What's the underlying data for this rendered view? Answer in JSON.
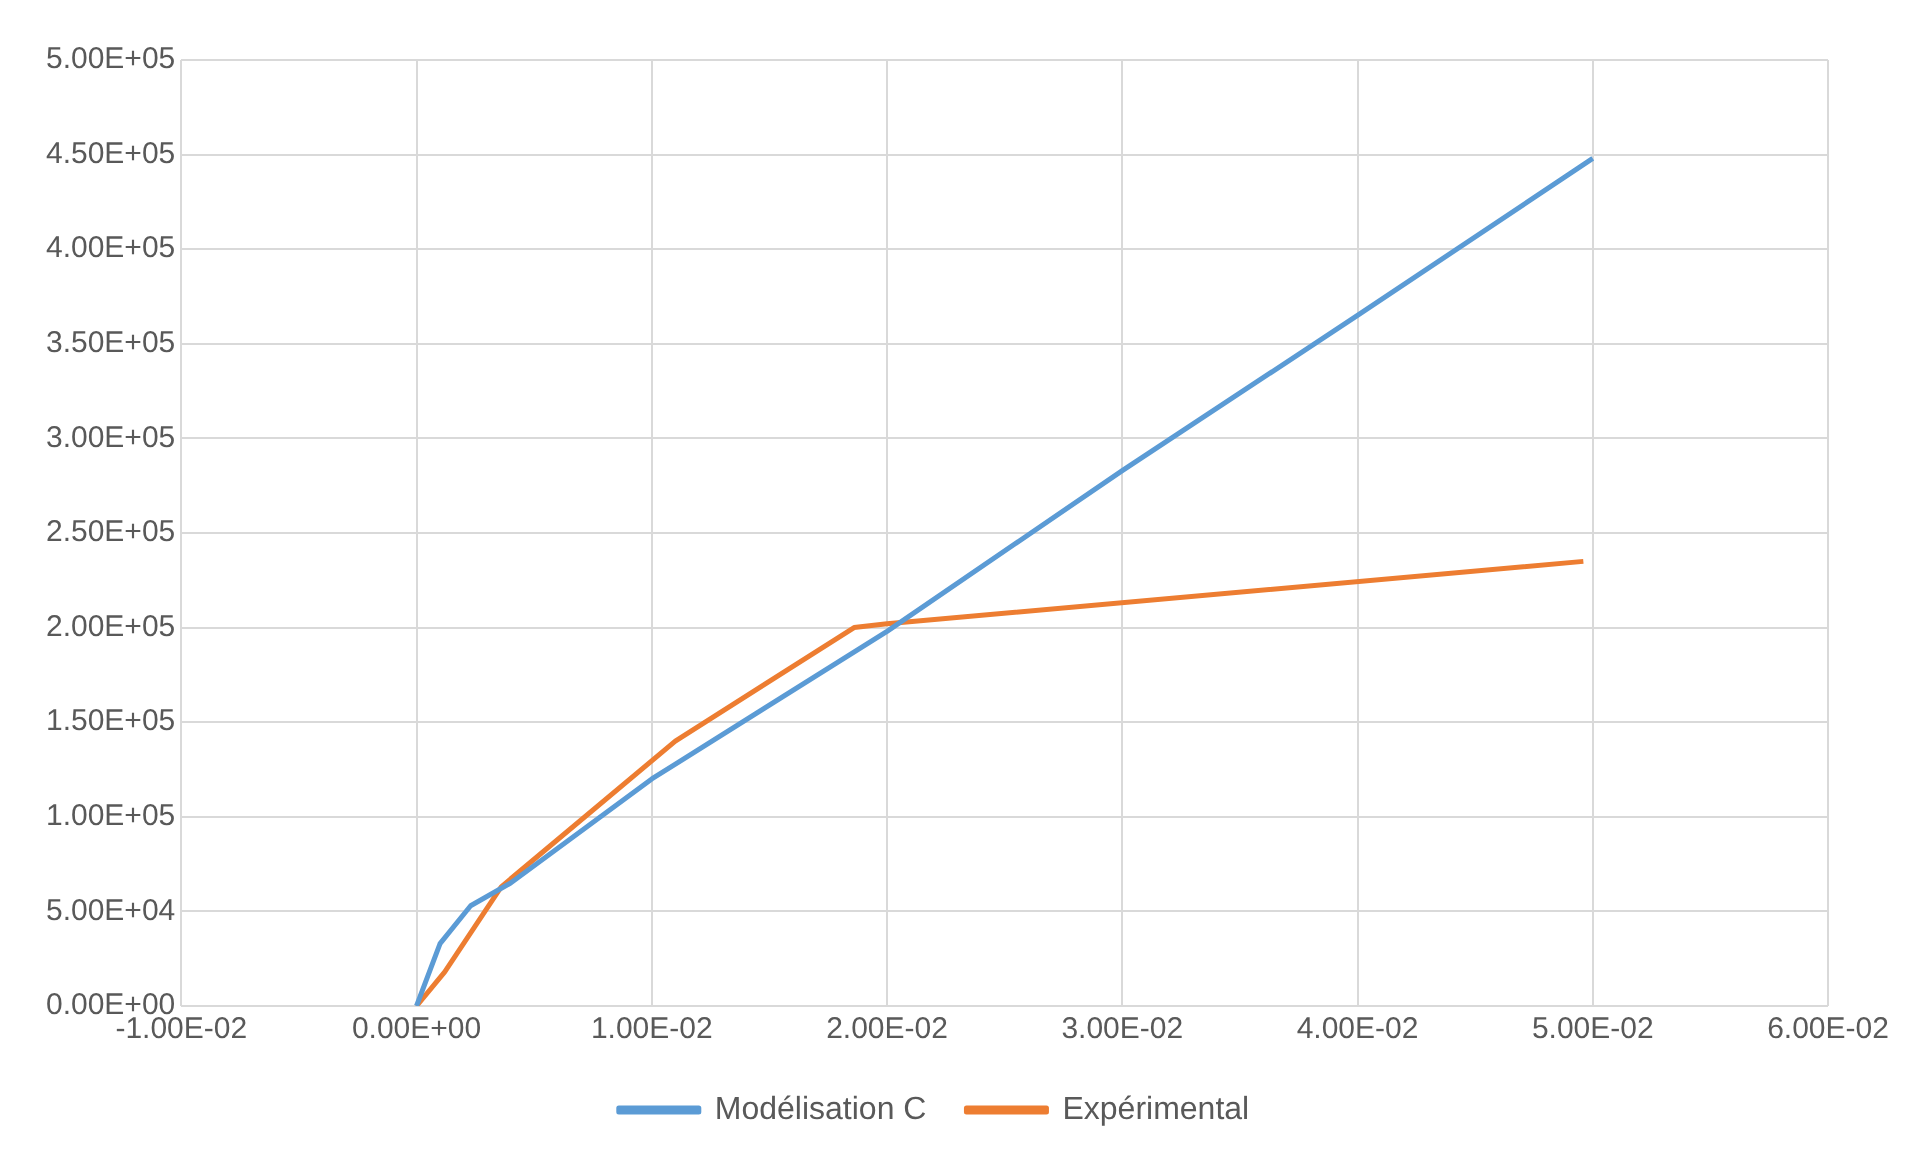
{
  "chart_data": {
    "type": "line",
    "series": [
      {
        "name": "Modélisation C",
        "color": "#5b9bd5",
        "x": [
          0,
          0.001,
          0.0023,
          0.004,
          0.01,
          0.02,
          0.03,
          0.04,
          0.05
        ],
        "values": [
          0,
          33000,
          53000,
          65000,
          120000,
          198000,
          283000,
          365000,
          448000
        ]
      },
      {
        "name": "Expérimental",
        "color": "#ed7d31",
        "x": [
          0,
          0.0012,
          0.0036,
          0.011,
          0.0186,
          0.02,
          0.0496
        ],
        "values": [
          0,
          18000,
          63000,
          140000,
          200000,
          202000,
          235000
        ]
      }
    ],
    "xlim": [
      -0.01,
      0.06
    ],
    "xticks": [
      {
        "value": -0.01,
        "label": "-1.00E-02"
      },
      {
        "value": 0,
        "label": "0.00E+00"
      },
      {
        "value": 0.01,
        "label": "1.00E-02"
      },
      {
        "value": 0.02,
        "label": "2.00E-02"
      },
      {
        "value": 0.03,
        "label": "3.00E-02"
      },
      {
        "value": 0.04,
        "label": "4.00E-02"
      },
      {
        "value": 0.05,
        "label": "5.00E-02"
      },
      {
        "value": 0.06,
        "label": "6.00E-02"
      }
    ],
    "ylim": [
      0,
      500000
    ],
    "yticks": [
      {
        "value": 0,
        "label": "0.00E+00"
      },
      {
        "value": 50000,
        "label": "5.00E+04"
      },
      {
        "value": 100000,
        "label": "1.00E+05"
      },
      {
        "value": 150000,
        "label": "1.50E+05"
      },
      {
        "value": 200000,
        "label": "2.00E+05"
      },
      {
        "value": 250000,
        "label": "2.50E+05"
      },
      {
        "value": 300000,
        "label": "3.00E+05"
      },
      {
        "value": 350000,
        "label": "3.50E+05"
      },
      {
        "value": 400000,
        "label": "4.00E+05"
      },
      {
        "value": 450000,
        "label": "4.50E+05"
      },
      {
        "value": 500000,
        "label": "5.00E+05"
      }
    ],
    "grid": true,
    "legend": "bottom",
    "marker": "none",
    "line_style": "solid"
  }
}
